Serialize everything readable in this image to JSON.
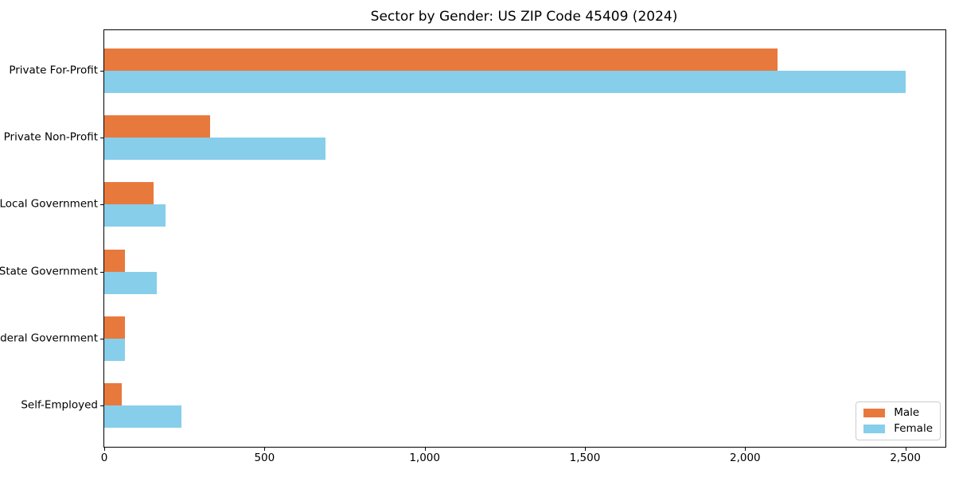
{
  "chart_data": {
    "type": "bar",
    "orientation": "horizontal",
    "title": "Sector by Gender: US ZIP Code 45409 (2024)",
    "categories": [
      "Private For-Profit",
      "Private Non-Profit",
      "Local Government",
      "State Government",
      "Federal Government",
      "Self-Employed"
    ],
    "series": [
      {
        "name": "Male",
        "color": "#E8793D",
        "values": [
          2100,
          330,
          155,
          65,
          65,
          55
        ]
      },
      {
        "name": "Female",
        "color": "#87CEEB",
        "values": [
          2500,
          690,
          190,
          165,
          65,
          240
        ]
      }
    ],
    "xlabel": "",
    "ylabel": "",
    "xlim": [
      0,
      2625
    ],
    "xticks": [
      {
        "value": 0,
        "label": "0"
      },
      {
        "value": 500,
        "label": "500"
      },
      {
        "value": 1000,
        "label": "1,000"
      },
      {
        "value": 1500,
        "label": "1,500"
      },
      {
        "value": 2000,
        "label": "2,000"
      },
      {
        "value": 2500,
        "label": "2,500"
      }
    ],
    "grid": false,
    "legend": {
      "position": "lower right"
    }
  }
}
